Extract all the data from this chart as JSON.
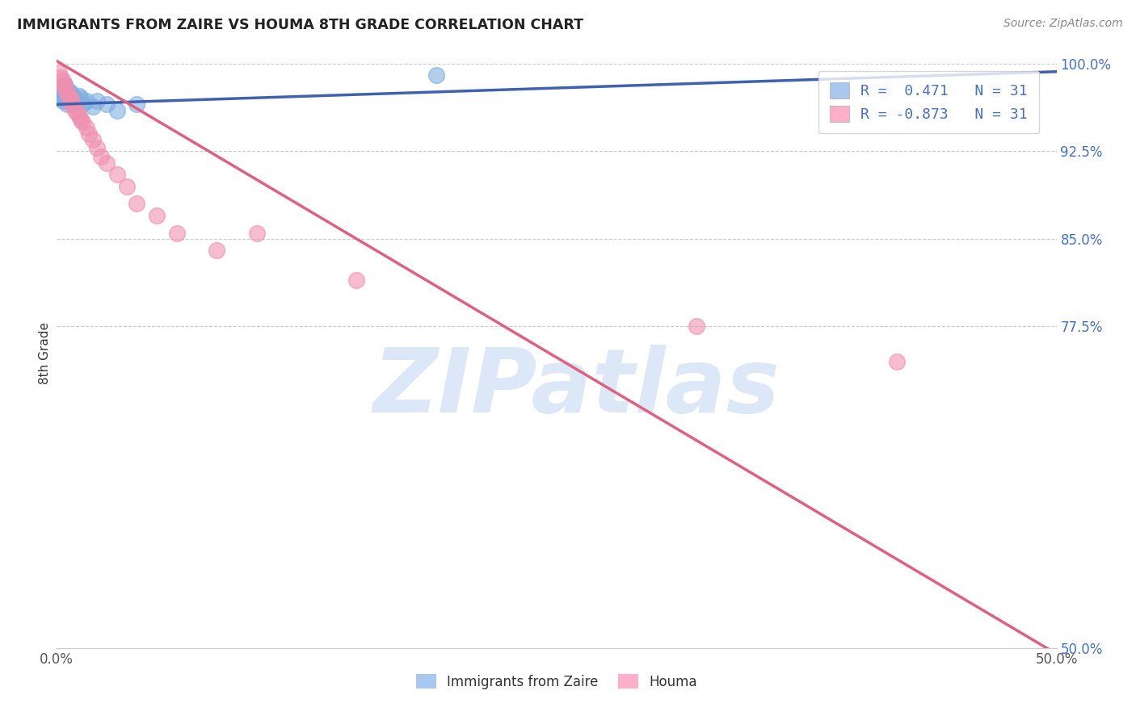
{
  "title": "IMMIGRANTS FROM ZAIRE VS HOUMA 8TH GRADE CORRELATION CHART",
  "source": "Source: ZipAtlas.com",
  "ylabel": "8th Grade",
  "xlim": [
    0.0,
    0.5
  ],
  "ylim": [
    0.5,
    1.005
  ],
  "xtick_positions": [
    0.0,
    0.1,
    0.2,
    0.3,
    0.4,
    0.5
  ],
  "xtick_labels": [
    "0.0%",
    "",
    "",
    "",
    "",
    "50.0%"
  ],
  "ytick_positions": [
    0.5,
    0.775,
    0.85,
    0.925,
    1.0
  ],
  "ytick_labels": [
    "50.0%",
    "77.5%",
    "85.0%",
    "92.5%",
    "100.0%"
  ],
  "legend_r1": "R =  0.471   N = 31",
  "legend_r2": "R = -0.873   N = 31",
  "legend_color1": "#a8c8f0",
  "legend_color2": "#ffb0c8",
  "line_color1": "#4060b0",
  "line_color2": "#e06080",
  "dot_color1": "#80b0e0",
  "dot_color2": "#f090b0",
  "watermark": "ZIPatlas",
  "watermark_color": "#dce8f8",
  "background_color": "#ffffff",
  "grid_color": "#cccccc",
  "zaire_x": [
    0.001,
    0.001,
    0.002,
    0.002,
    0.003,
    0.003,
    0.003,
    0.004,
    0.004,
    0.004,
    0.005,
    0.005,
    0.005,
    0.006,
    0.006,
    0.007,
    0.007,
    0.008,
    0.008,
    0.009,
    0.01,
    0.011,
    0.012,
    0.013,
    0.015,
    0.018,
    0.02,
    0.025,
    0.03,
    0.04,
    0.19
  ],
  "zaire_y": [
    0.975,
    0.97,
    0.98,
    0.972,
    0.978,
    0.972,
    0.968,
    0.982,
    0.975,
    0.97,
    0.978,
    0.972,
    0.965,
    0.975,
    0.968,
    0.975,
    0.97,
    0.972,
    0.965,
    0.97,
    0.968,
    0.972,
    0.97,
    0.965,
    0.968,
    0.963,
    0.968,
    0.965,
    0.96,
    0.965,
    0.99
  ],
  "houma_x": [
    0.001,
    0.002,
    0.003,
    0.004,
    0.004,
    0.005,
    0.006,
    0.007,
    0.007,
    0.008,
    0.009,
    0.01,
    0.011,
    0.012,
    0.013,
    0.015,
    0.016,
    0.018,
    0.02,
    0.022,
    0.025,
    0.03,
    0.035,
    0.04,
    0.05,
    0.06,
    0.08,
    0.1,
    0.15,
    0.32,
    0.42
  ],
  "houma_y": [
    0.992,
    0.988,
    0.985,
    0.982,
    0.978,
    0.975,
    0.972,
    0.97,
    0.965,
    0.965,
    0.96,
    0.958,
    0.955,
    0.952,
    0.95,
    0.945,
    0.94,
    0.935,
    0.928,
    0.92,
    0.915,
    0.905,
    0.895,
    0.88,
    0.87,
    0.855,
    0.84,
    0.855,
    0.815,
    0.775,
    0.745
  ],
  "line1_x0": 0.0,
  "line1_y0": 0.965,
  "line1_x1": 0.5,
  "line1_y1": 0.993,
  "line2_x0": 0.0,
  "line2_y0": 1.002,
  "line2_x1": 0.5,
  "line2_y1": 0.495
}
